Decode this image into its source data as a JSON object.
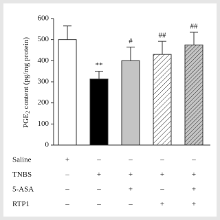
{
  "chart_data": {
    "type": "bar",
    "ylabel": {
      "main": "PGE",
      "sub": "2",
      "rest": " content (pg/mg protein)"
    },
    "categories": [
      null,
      null,
      null,
      null,
      null
    ],
    "values": [
      500,
      313,
      400,
      430,
      475
    ],
    "errors": [
      65,
      37,
      65,
      62,
      60
    ],
    "colors": [
      "#ffffff",
      "#000000",
      "#c4c4c4",
      "#ffffff",
      "#c4c4c4"
    ],
    "patterns": [
      null,
      null,
      null,
      "hatch",
      "hatch"
    ],
    "annotations": [
      null,
      "**",
      "#",
      "##",
      "##"
    ],
    "ylim": [
      0,
      600
    ],
    "yticks": [
      0,
      100,
      200,
      300,
      400,
      500,
      600
    ],
    "grid": false,
    "table": {
      "rows": [
        {
          "label": "Saline",
          "cells": [
            "+",
            "–",
            "–",
            "–",
            "–"
          ]
        },
        {
          "label": "TNBS",
          "cells": [
            "–",
            "+",
            "+",
            "+",
            "+"
          ]
        },
        {
          "label": "5-ASA",
          "cells": [
            "–",
            "–",
            "+",
            "–",
            "+"
          ]
        },
        {
          "label": "RTP1",
          "cells": [
            "–",
            "–",
            "–",
            "+",
            "+"
          ]
        }
      ]
    }
  }
}
